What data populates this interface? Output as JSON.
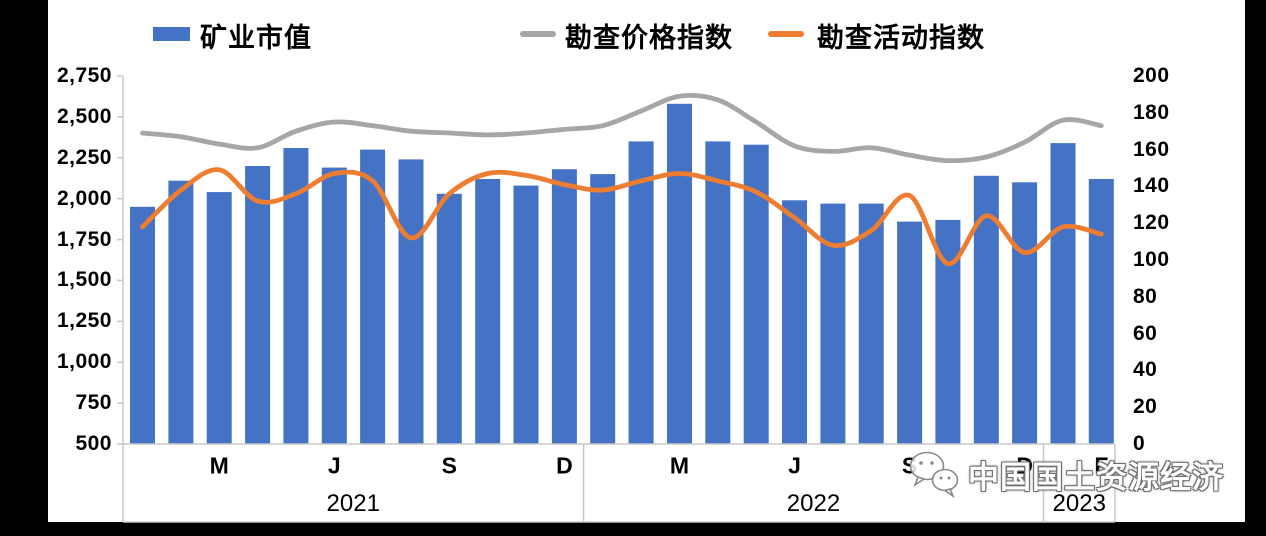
{
  "chart_data": {
    "type": "combo",
    "title": "",
    "categories": [
      "2021-01",
      "2021-02",
      "2021-03",
      "2021-04",
      "2021-05",
      "2021-06",
      "2021-07",
      "2021-08",
      "2021-09",
      "2021-10",
      "2021-11",
      "2021-12",
      "2022-01",
      "2022-02",
      "2022-03",
      "2022-04",
      "2022-05",
      "2022-06",
      "2022-07",
      "2022-08",
      "2022-09",
      "2022-10",
      "2022-11",
      "2022-12",
      "2023-01",
      "2023-02"
    ],
    "series": [
      {
        "name": "矿业市值",
        "type": "bar",
        "axis": "left",
        "color": "#4472C4",
        "values": [
          1950,
          2110,
          2040,
          2200,
          2310,
          2190,
          2300,
          2240,
          2030,
          2120,
          2080,
          2180,
          2150,
          2350,
          2580,
          2350,
          2330,
          1990,
          1970,
          1970,
          1860,
          1870,
          2140,
          2100,
          2340,
          2120
        ]
      },
      {
        "name": "勘查价格指数",
        "type": "line",
        "axis": "right",
        "color": "#A6A6A6",
        "values": [
          169,
          167,
          163,
          161,
          170,
          175,
          173,
          170,
          169,
          168,
          169,
          171,
          173,
          181,
          189,
          187,
          175,
          162,
          159,
          161,
          157,
          154,
          156,
          164,
          176,
          173
        ]
      },
      {
        "name": "勘查活动指数",
        "type": "line",
        "axis": "right",
        "color": "#ED7D31",
        "values": [
          118,
          138,
          149,
          132,
          136,
          147,
          143,
          112,
          136,
          147,
          146,
          141,
          138,
          143,
          147,
          143,
          137,
          123,
          108,
          116,
          135,
          98,
          124,
          104,
          118,
          114
        ]
      }
    ],
    "left_axis": {
      "min": 500,
      "max": 2750,
      "step": 250,
      "tick_labels": [
        "2,750",
        "2,500",
        "2,250",
        "2,000",
        "1,750",
        "1,500",
        "1,250",
        "1,000",
        "750",
        "500"
      ]
    },
    "right_axis": {
      "min": 0,
      "max": 200,
      "step": 20,
      "tick_labels": [
        "200",
        "180",
        "160",
        "140",
        "120",
        "100",
        "80",
        "60",
        "40",
        "20",
        "0"
      ]
    },
    "x_axis": {
      "month_ticks": [
        {
          "index": 2,
          "label": "M"
        },
        {
          "index": 5,
          "label": "J"
        },
        {
          "index": 8,
          "label": "S"
        },
        {
          "index": 11,
          "label": "D"
        },
        {
          "index": 14,
          "label": "M"
        },
        {
          "index": 17,
          "label": "J"
        },
        {
          "index": 20,
          "label": "S"
        },
        {
          "index": 23,
          "label": "D"
        },
        {
          "index": 25,
          "label": "F"
        }
      ],
      "year_groups": [
        {
          "label": "2021",
          "start": 0,
          "end": 11
        },
        {
          "label": "2022",
          "start": 12,
          "end": 23
        },
        {
          "label": "2023",
          "start": 24,
          "end": 25
        }
      ]
    },
    "grid": false,
    "legend_position": "top"
  },
  "legend": {
    "items": [
      {
        "label": "矿业市值",
        "swatch": "bar",
        "color": "#4472C4"
      },
      {
        "label": "勘查价格指数",
        "swatch": "line",
        "color": "#A6A6A6"
      },
      {
        "label": "勘查活动指数",
        "swatch": "line",
        "color": "#ED7D31"
      }
    ]
  },
  "watermark": {
    "text": "中国国土资源经济",
    "icon": "wechat-icon"
  },
  "colors": {
    "background": "#000000",
    "card": "#FFFFFF",
    "axis_line": "#C8C8C8",
    "bar": "#4472C4",
    "price_index_line": "#A6A6A6",
    "activity_index_line": "#ED7D31"
  }
}
